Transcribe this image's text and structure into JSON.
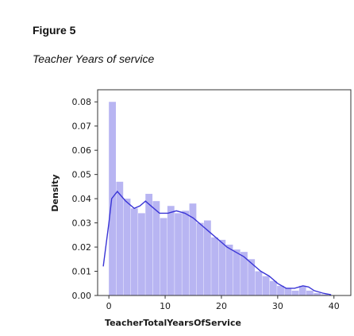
{
  "figure": {
    "label": "Figure 5",
    "caption": "Teacher Years of service"
  },
  "chart_data": {
    "type": "bar",
    "title": "",
    "xlabel": "TeacherTotalYearsOfService",
    "ylabel": "Density",
    "xlim": [
      -2,
      43
    ],
    "ylim": [
      0,
      0.085
    ],
    "xticks": [
      0,
      10,
      20,
      30,
      40
    ],
    "yticks": [
      0.0,
      0.01,
      0.02,
      0.03,
      0.04,
      0.05,
      0.06,
      0.07,
      0.08
    ],
    "ytick_labels": [
      "0.00",
      "0.01",
      "0.02",
      "0.03",
      "0.04",
      "0.05",
      "0.06",
      "0.07",
      "0.08"
    ],
    "xtick_labels": [
      "0",
      "10",
      "20",
      "30",
      "40"
    ],
    "bin_width": 1.3,
    "bins": [
      {
        "x": 0.0,
        "density": 0.08
      },
      {
        "x": 1.3,
        "density": 0.047
      },
      {
        "x": 2.6,
        "density": 0.04
      },
      {
        "x": 3.9,
        "density": 0.036
      },
      {
        "x": 5.2,
        "density": 0.034
      },
      {
        "x": 6.5,
        "density": 0.042
      },
      {
        "x": 7.8,
        "density": 0.039
      },
      {
        "x": 9.1,
        "density": 0.032
      },
      {
        "x": 10.4,
        "density": 0.037
      },
      {
        "x": 11.7,
        "density": 0.034
      },
      {
        "x": 13.0,
        "density": 0.035
      },
      {
        "x": 14.3,
        "density": 0.038
      },
      {
        "x": 15.6,
        "density": 0.03
      },
      {
        "x": 16.9,
        "density": 0.031
      },
      {
        "x": 18.2,
        "density": 0.024
      },
      {
        "x": 19.5,
        "density": 0.023
      },
      {
        "x": 20.8,
        "density": 0.021
      },
      {
        "x": 22.1,
        "density": 0.019
      },
      {
        "x": 23.4,
        "density": 0.018
      },
      {
        "x": 24.7,
        "density": 0.015
      },
      {
        "x": 26.0,
        "density": 0.01
      },
      {
        "x": 27.3,
        "density": 0.008
      },
      {
        "x": 28.6,
        "density": 0.006
      },
      {
        "x": 29.9,
        "density": 0.004
      },
      {
        "x": 31.2,
        "density": 0.003
      },
      {
        "x": 32.5,
        "density": 0.002
      },
      {
        "x": 33.8,
        "density": 0.004
      },
      {
        "x": 35.1,
        "density": 0.002
      },
      {
        "x": 36.4,
        "density": 0.001
      },
      {
        "x": 37.7,
        "density": 0.0005
      }
    ],
    "kde": {
      "x": [
        -1,
        0,
        0.5,
        1.5,
        3,
        4.5,
        5.5,
        6.5,
        7.5,
        9,
        10.5,
        12,
        13.5,
        15,
        16.5,
        18,
        19.5,
        21,
        22.5,
        24,
        25.5,
        27,
        28.5,
        30,
        31.5,
        33,
        34.5,
        35.5,
        36.5,
        38,
        39.5
      ],
      "y": [
        0.012,
        0.03,
        0.04,
        0.043,
        0.039,
        0.036,
        0.037,
        0.039,
        0.037,
        0.034,
        0.034,
        0.035,
        0.034,
        0.032,
        0.029,
        0.026,
        0.023,
        0.02,
        0.018,
        0.016,
        0.013,
        0.01,
        0.008,
        0.005,
        0.003,
        0.003,
        0.004,
        0.0035,
        0.002,
        0.001,
        0.0003
      ]
    },
    "colors": {
      "bars": "#b8b5f2",
      "kde": "#3a35d6",
      "frame": "#333333"
    }
  }
}
